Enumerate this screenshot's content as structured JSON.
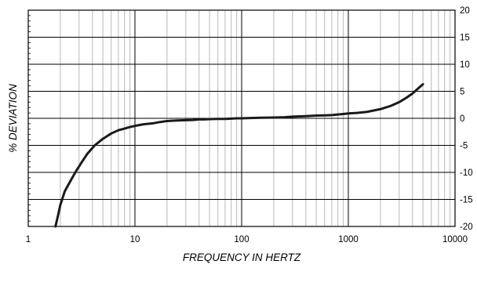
{
  "chart_data": {
    "type": "line",
    "title": "",
    "xlabel": "FREQUENCY IN HERTZ",
    "ylabel": "% DEVIATION",
    "x_scale": "log",
    "xlim": [
      1,
      10000
    ],
    "ylim": [
      -20,
      20
    ],
    "grid": true,
    "legend": "none",
    "x_tick_labels": [
      "1",
      "10",
      "100",
      "1000",
      "10000"
    ],
    "y_tick_labels": [
      "20",
      "15",
      "10",
      "5",
      "0",
      "-5",
      "-10",
      "-15",
      "-20"
    ],
    "y_tick_values": [
      20,
      15,
      10,
      5,
      0,
      -5,
      -10,
      -15,
      -20
    ],
    "line_color": "#1a1a1a",
    "series": [
      {
        "x": [
          1.8,
          1.9,
          2.0,
          2.2,
          2.5,
          2.8,
          3.2,
          3.6,
          4.2,
          5.0,
          6.0,
          7.0,
          8.0,
          9.0,
          10,
          12,
          15,
          17,
          20,
          22,
          25,
          30,
          35,
          40,
          45,
          50,
          60,
          70,
          80,
          90,
          100,
          120,
          150,
          200,
          250,
          300,
          400,
          500,
          600,
          700,
          800,
          900,
          1000,
          1200,
          1500,
          2000,
          2500,
          3000,
          3500,
          4000,
          4500,
          5000
        ],
        "y": [
          -20,
          -18,
          -16,
          -13.5,
          -11.5,
          -9.8,
          -8.0,
          -6.5,
          -5.0,
          -3.8,
          -2.8,
          -2.2,
          -1.9,
          -1.6,
          -1.4,
          -1.1,
          -0.9,
          -0.7,
          -0.5,
          -0.45,
          -0.4,
          -0.35,
          -0.3,
          -0.2,
          -0.2,
          -0.15,
          -0.1,
          -0.1,
          -0.05,
          0,
          0,
          0.05,
          0.1,
          0.15,
          0.2,
          0.3,
          0.4,
          0.5,
          0.55,
          0.6,
          0.7,
          0.8,
          0.9,
          1.0,
          1.2,
          1.7,
          2.3,
          3.0,
          3.8,
          4.6,
          5.5,
          6.3
        ]
      }
    ]
  }
}
